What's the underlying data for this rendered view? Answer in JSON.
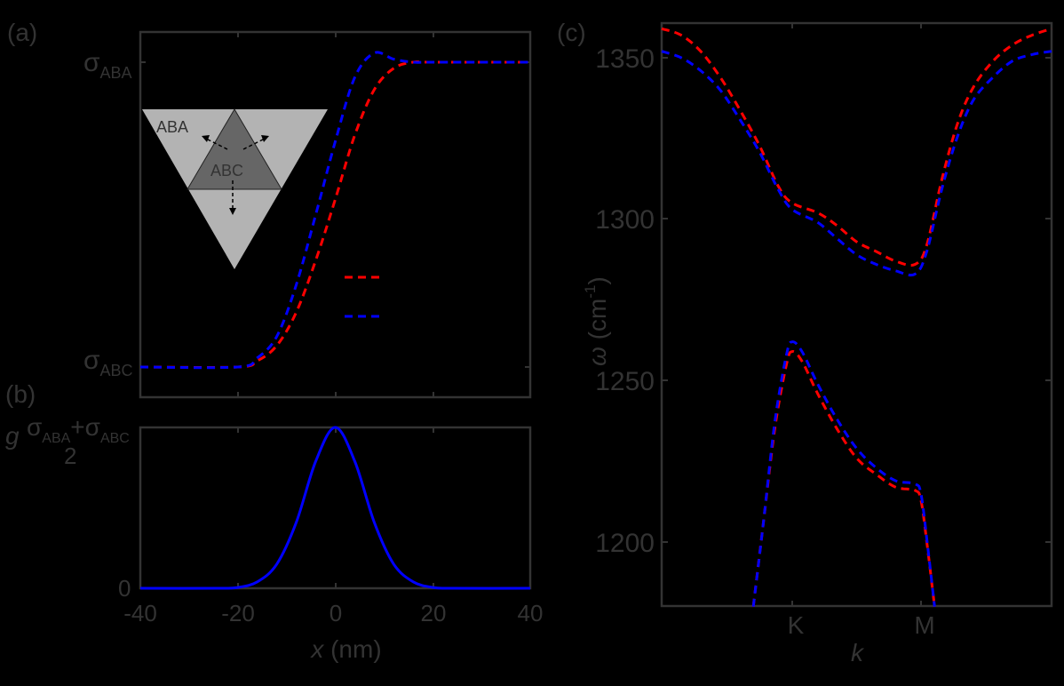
{
  "chart_data": [
    {
      "panel": "(a)",
      "type": "line",
      "xlabel": "",
      "ylabel": "",
      "xlim": [
        -40,
        40
      ],
      "xticks": [
        -40,
        -20,
        0,
        20,
        40
      ],
      "yticks_labels": [
        "σ_ABC",
        "σ_ABA"
      ],
      "ylim_normalized": [
        -0.1,
        1.1
      ],
      "legend": {
        "position": "center-right",
        "entries": [
          {
            "name": "",
            "color": "#ff0000",
            "style": "dashed"
          },
          {
            "name": "",
            "color": "#0000ff",
            "style": "dashed"
          }
        ]
      },
      "inset": {
        "type": "diagram",
        "regions": [
          "ABA",
          "ABC"
        ],
        "description": "Inverted triangle (ABA, light gray) with central upright triangle (ABC, dark gray) and three outward dashed arrows"
      },
      "series": [
        {
          "name": "red",
          "color": "#ff0000",
          "style": "dashed",
          "x": [
            -40,
            -20,
            -16,
            -12,
            -8,
            -4,
            0,
            4,
            8,
            12,
            16,
            20,
            40
          ],
          "y": [
            0,
            0,
            0.02,
            0.07,
            0.18,
            0.35,
            0.55,
            0.76,
            0.91,
            0.98,
            1.0,
            1.0,
            1.0
          ]
        },
        {
          "name": "blue",
          "color": "#0000ff",
          "style": "dashed",
          "x": [
            -40,
            -20,
            -16,
            -12,
            -8,
            -4,
            0,
            4,
            8,
            12,
            16,
            20,
            40
          ],
          "y": [
            0,
            0,
            0.03,
            0.1,
            0.27,
            0.5,
            0.74,
            0.95,
            1.03,
            1.01,
            1.0,
            1.0,
            1.0
          ]
        }
      ]
    },
    {
      "panel": "(b)",
      "type": "line",
      "xlabel": "x (nm)",
      "ylabel": "g",
      "xlim": [
        -40,
        40
      ],
      "xticks": [
        -40,
        -20,
        0,
        20,
        40
      ],
      "yticks_labels": [
        "0",
        "(σ_ABA+σ_ABC)/2"
      ],
      "series": [
        {
          "name": "g",
          "color": "#0000ff",
          "style": "solid",
          "x": [
            -40,
            -24,
            -20,
            -16,
            -12,
            -8,
            -4,
            0,
            4,
            8,
            12,
            16,
            20,
            24,
            40
          ],
          "y": [
            0,
            0,
            0.005,
            0.04,
            0.15,
            0.41,
            0.79,
            1.0,
            0.79,
            0.41,
            0.15,
            0.04,
            0.005,
            0,
            0
          ]
        }
      ]
    },
    {
      "panel": "(c)",
      "type": "line",
      "xlabel": "k",
      "ylabel": "ω (cm-1)",
      "xticks_labels": [
        "K",
        "M"
      ],
      "xticks_pos": [
        0.335,
        0.665
      ],
      "ylim": [
        1180,
        1361
      ],
      "yticks": [
        1200,
        1250,
        1300,
        1350
      ],
      "series": [
        {
          "name": "red upper",
          "color": "#ff0000",
          "style": "dashed",
          "x": [
            0.0,
            0.05,
            0.1,
            0.15,
            0.2,
            0.25,
            0.3,
            0.335,
            0.4,
            0.45,
            0.5,
            0.55,
            0.6,
            0.65,
            0.68,
            0.72,
            0.76,
            0.8,
            0.85,
            0.9,
            0.95,
            1.0
          ],
          "y": [
            1359,
            1357,
            1352,
            1344,
            1334,
            1323,
            1310,
            1305,
            1302,
            1298,
            1293,
            1290,
            1287,
            1286,
            1292,
            1313,
            1330,
            1341,
            1349,
            1354,
            1357,
            1359
          ]
        },
        {
          "name": "blue upper",
          "color": "#0000ff",
          "style": "dashed",
          "x": [
            0.0,
            0.05,
            0.1,
            0.15,
            0.2,
            0.25,
            0.3,
            0.335,
            0.4,
            0.45,
            0.5,
            0.55,
            0.6,
            0.65,
            0.68,
            0.72,
            0.76,
            0.8,
            0.85,
            0.9,
            0.95,
            1.0
          ],
          "y": [
            1352,
            1350,
            1346,
            1340,
            1331,
            1321,
            1309,
            1303,
            1299,
            1294,
            1289,
            1286,
            1284,
            1283,
            1290,
            1310,
            1326,
            1337,
            1344,
            1349,
            1351,
            1352
          ]
        },
        {
          "name": "red lower",
          "color": "#ff0000",
          "style": "dashed",
          "x": [
            0.235,
            0.26,
            0.29,
            0.32,
            0.335,
            0.36,
            0.4,
            0.45,
            0.5,
            0.55,
            0.6,
            0.65,
            0.665,
            0.68,
            0.7
          ],
          "y": [
            1180,
            1205,
            1235,
            1255,
            1259,
            1256,
            1246,
            1235,
            1226,
            1221,
            1217,
            1216,
            1213,
            1200,
            1180
          ]
        },
        {
          "name": "blue lower",
          "color": "#0000ff",
          "style": "dashed",
          "x": [
            0.235,
            0.26,
            0.29,
            0.32,
            0.335,
            0.36,
            0.4,
            0.45,
            0.5,
            0.55,
            0.6,
            0.65,
            0.665,
            0.68,
            0.7
          ],
          "y": [
            1180,
            1205,
            1237,
            1258,
            1262,
            1259,
            1249,
            1238,
            1229,
            1223,
            1219,
            1218,
            1215,
            1201,
            1180
          ]
        }
      ]
    }
  ],
  "labels": {
    "panel_a": "(a)",
    "panel_b": "(b)",
    "panel_c": "(c)",
    "sigma": "σ",
    "aba_sub": "ABA",
    "abc_sub": "ABC",
    "plus": "+",
    "two": "2",
    "g": "g",
    "zero": "0",
    "inset_aba": "ABA",
    "inset_abc": "ABC",
    "xlabel_b_var": "x",
    "xlabel_b_unit": " (nm)",
    "xticks_b": [
      "-40",
      "-20",
      "0",
      "20",
      "40"
    ],
    "ylabel_c_var": "ω",
    "ylabel_c_unit": " (cm",
    "ylabel_c_exp": "-1",
    "ylabel_c_close": ")",
    "yticks_c": [
      "1200",
      "1250",
      "1300",
      "1350"
    ],
    "xticks_c": [
      "K",
      "M"
    ],
    "xlabel_c": "k"
  },
  "colors": {
    "red": "#ff0000",
    "blue": "#0000ff",
    "axis": "#333333",
    "inset_light": "#b3b3b3",
    "inset_dark": "#666666"
  }
}
